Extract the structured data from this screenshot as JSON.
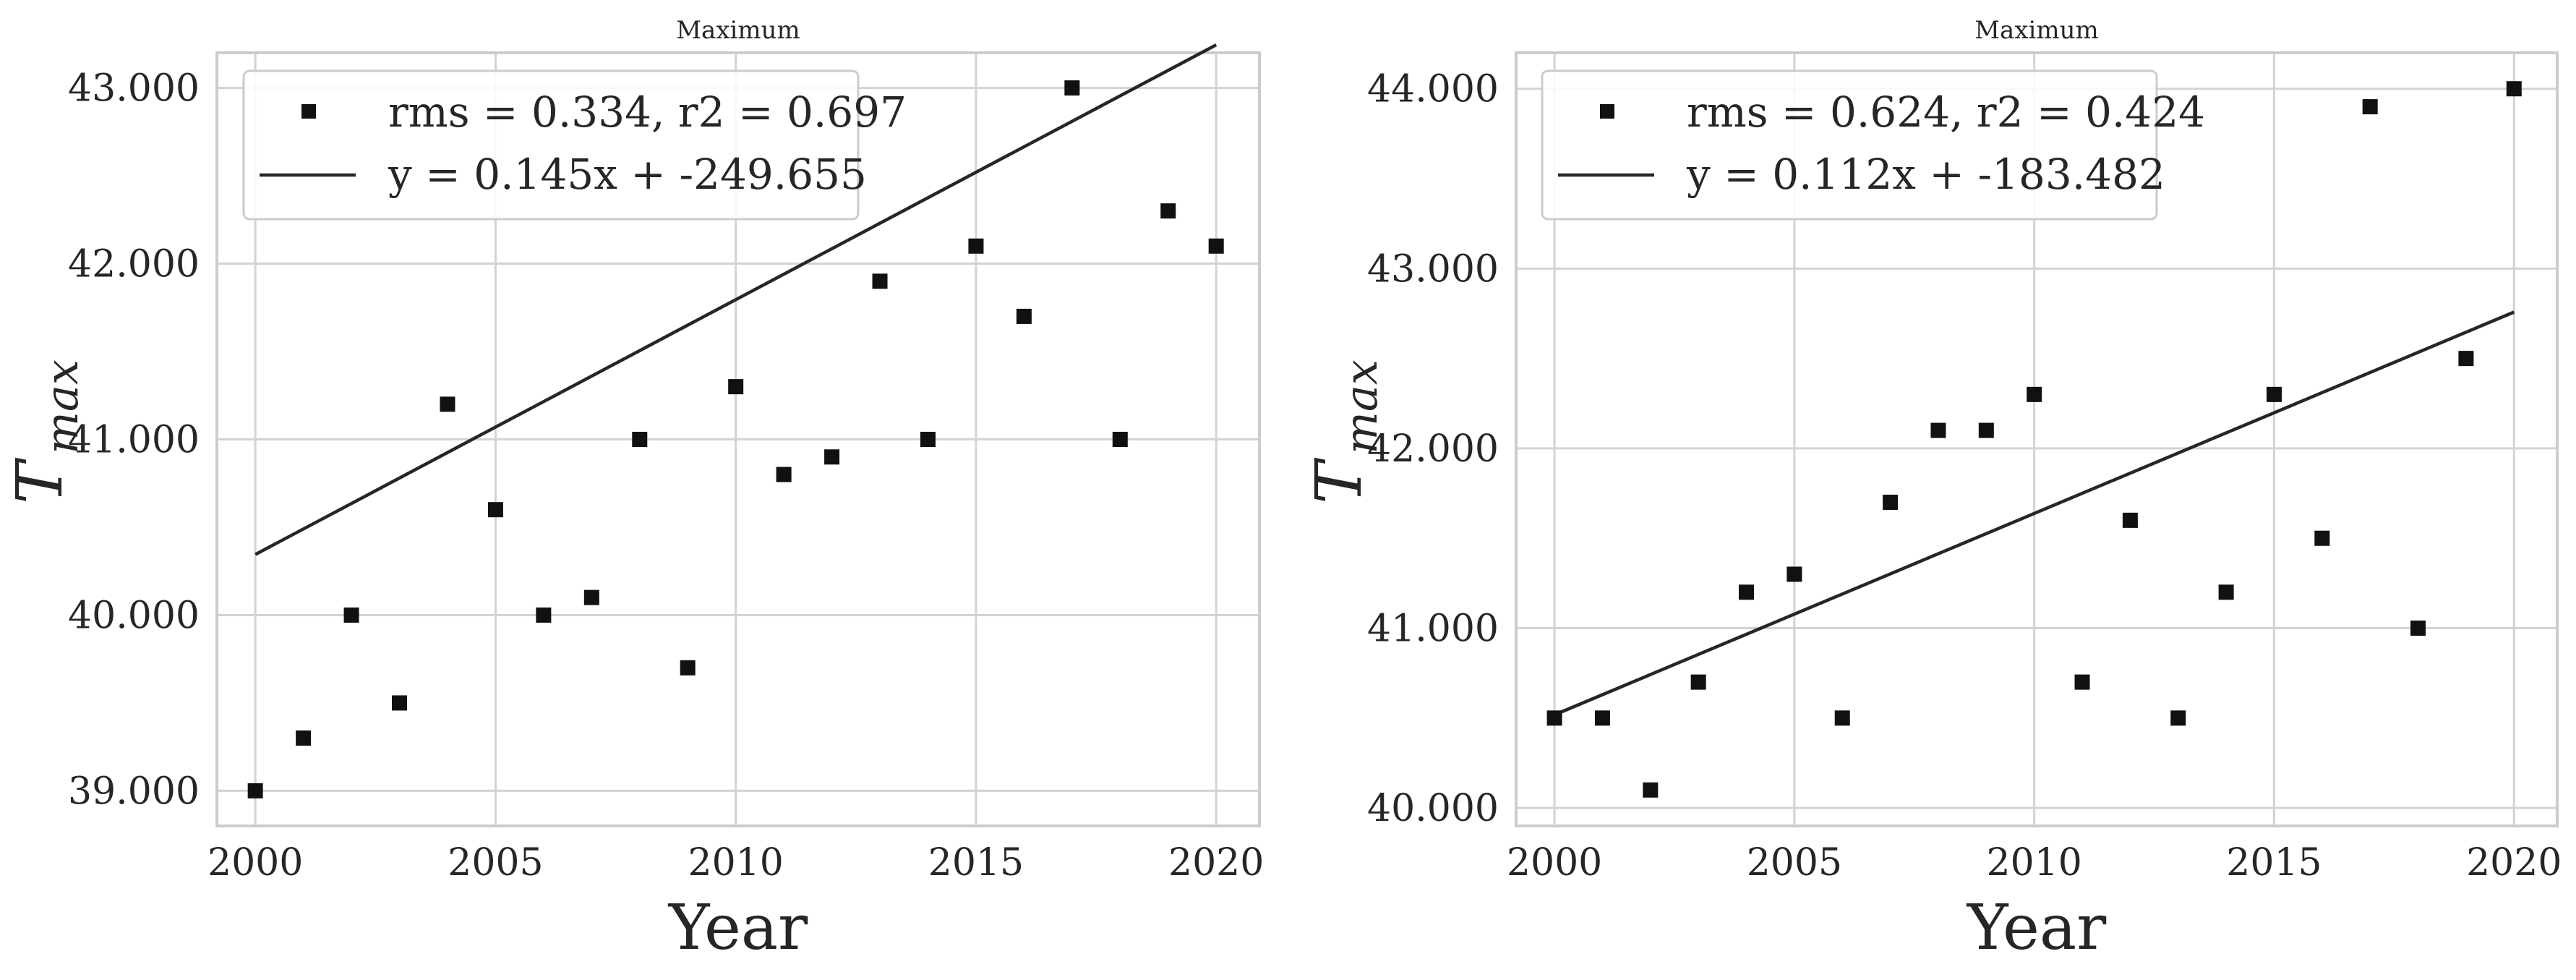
{
  "colors": {
    "marker": "#111111",
    "line": "#262626",
    "grid": "#d3d3d3",
    "frame": "#cccccc",
    "background": "#ffffff"
  },
  "chart_data": [
    {
      "type": "scatter",
      "title": "Maximum",
      "xlabel": "Year",
      "ylabel": "T",
      "ylabel_subscript": "max",
      "xlim": [
        1999.2,
        2020.9
      ],
      "ylim": [
        38.8,
        43.2
      ],
      "xticks": [
        2000,
        2005,
        2010,
        2015,
        2020
      ],
      "yticks": [
        39,
        40,
        41,
        42,
        43
      ],
      "ytick_labels": [
        "39.000",
        "40.000",
        "41.000",
        "42.000",
        "43.000"
      ],
      "grid": true,
      "legend_position": "top-left",
      "x": [
        2000,
        2001,
        2002,
        2003,
        2004,
        2005,
        2006,
        2007,
        2008,
        2009,
        2010,
        2011,
        2012,
        2013,
        2014,
        2015,
        2016,
        2017,
        2018,
        2019,
        2020
      ],
      "series": [
        {
          "name": "rms = 0.334, r2 = 0.697",
          "marker": "square",
          "values": [
            39.0,
            39.3,
            40.0,
            39.5,
            41.2,
            40.6,
            40.0,
            40.1,
            41.0,
            39.7,
            41.3,
            40.8,
            40.9,
            41.9,
            41.0,
            42.1,
            41.7,
            43.0,
            41.0,
            42.3,
            42.1
          ]
        },
        {
          "name": "y = 0.145x + -249.655",
          "marker": "line",
          "slope": 0.145,
          "intercept": -249.655
        }
      ]
    },
    {
      "type": "scatter",
      "title": "Maximum",
      "xlabel": "Year",
      "ylabel": "T",
      "ylabel_subscript": "max",
      "xlim": [
        1999.2,
        2020.9
      ],
      "ylim": [
        39.9,
        44.2
      ],
      "xticks": [
        2000,
        2005,
        2010,
        2015,
        2020
      ],
      "yticks": [
        40,
        41,
        42,
        43,
        44
      ],
      "ytick_labels": [
        "40.000",
        "41.000",
        "42.000",
        "43.000",
        "44.000"
      ],
      "grid": true,
      "legend_position": "top-left",
      "x": [
        2000,
        2001,
        2002,
        2003,
        2004,
        2005,
        2006,
        2007,
        2008,
        2009,
        2010,
        2011,
        2012,
        2013,
        2014,
        2015,
        2016,
        2017,
        2018,
        2019,
        2020
      ],
      "series": [
        {
          "name": "rms = 0.624, r2 = 0.424",
          "marker": "square",
          "values": [
            40.5,
            40.5,
            40.1,
            40.7,
            41.2,
            41.3,
            40.5,
            41.7,
            42.1,
            42.1,
            42.3,
            40.7,
            41.6,
            40.5,
            41.2,
            42.3,
            41.5,
            43.9,
            41.0,
            42.5,
            44.0
          ]
        },
        {
          "name": "y = 0.112x + -183.482",
          "marker": "line",
          "slope": 0.112,
          "intercept": -183.482
        }
      ]
    }
  ]
}
